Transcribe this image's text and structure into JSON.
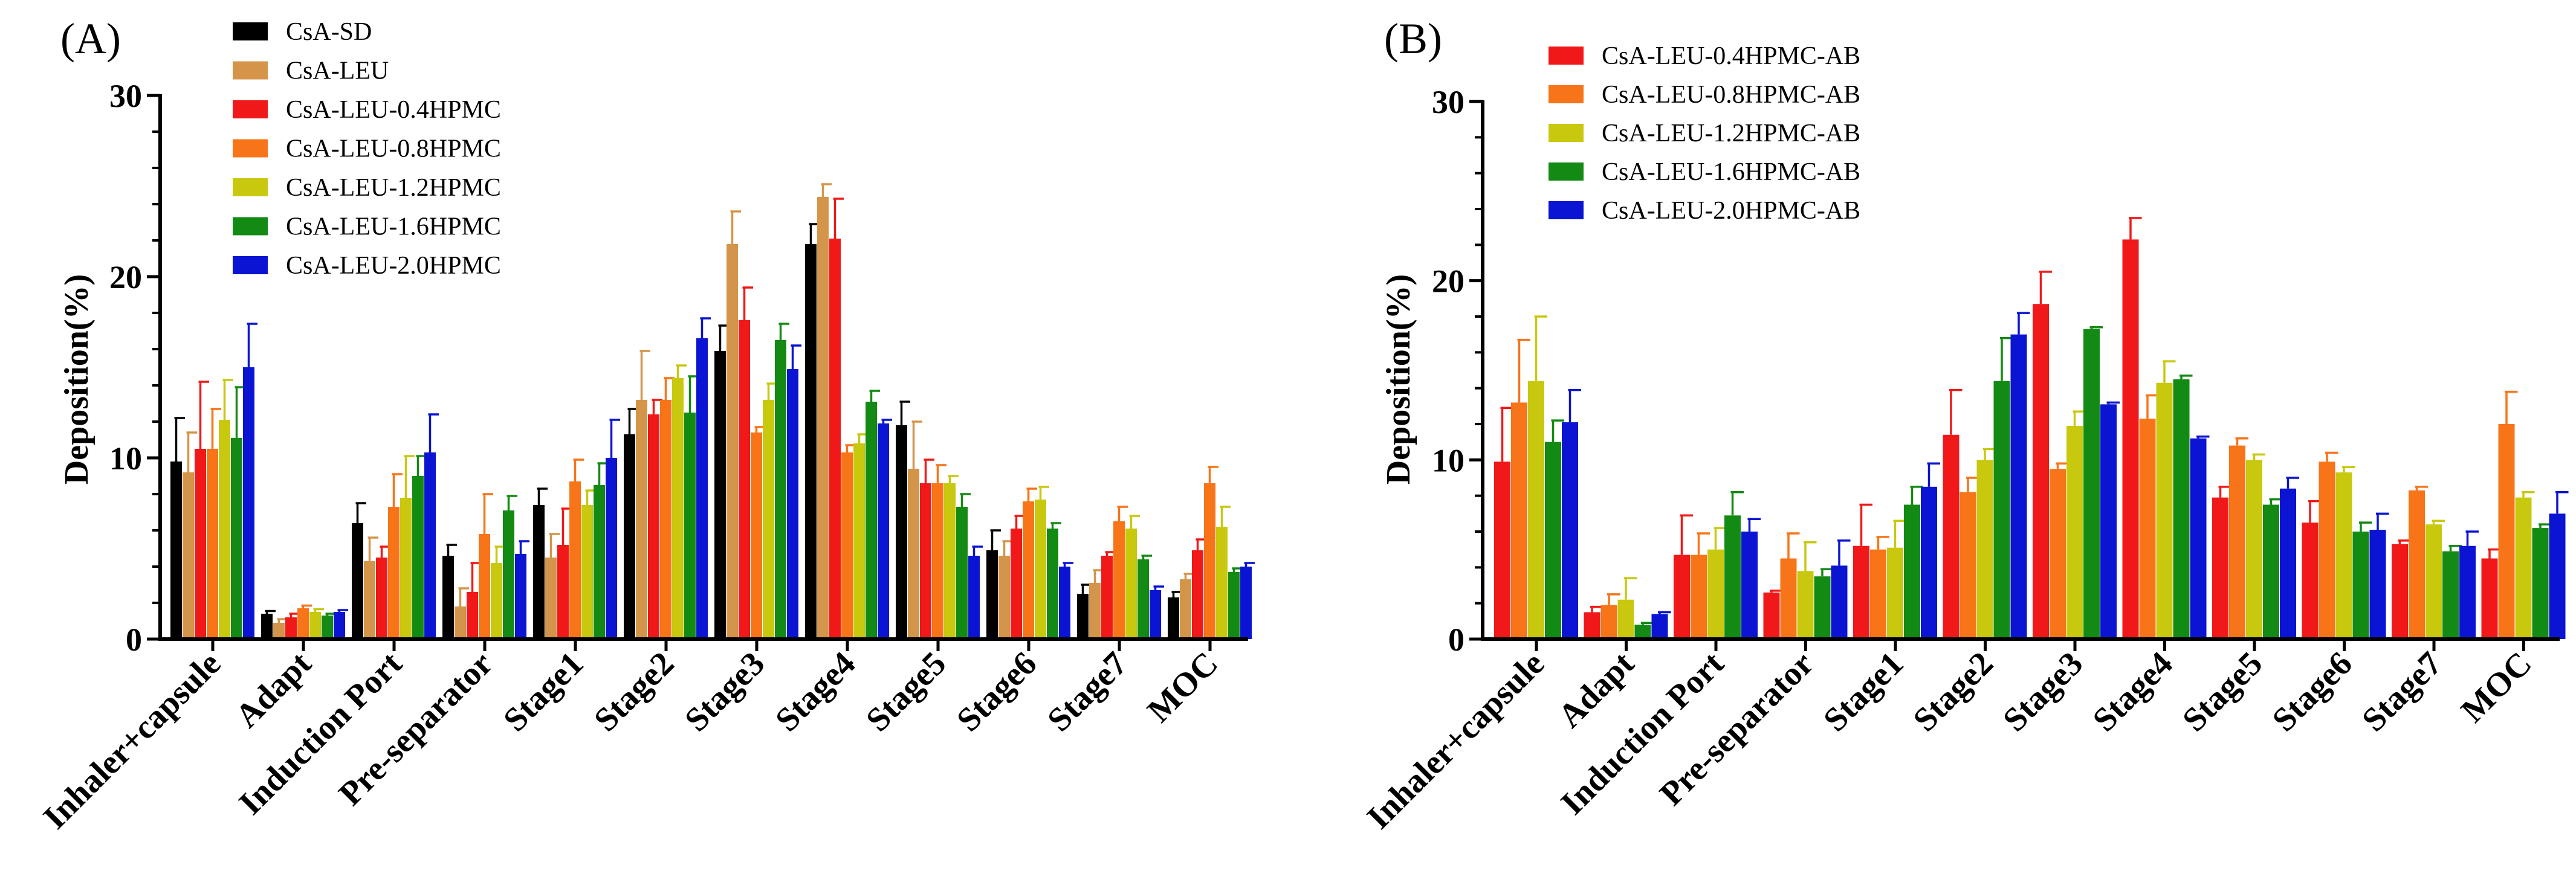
{
  "chart_data": [
    {
      "panel": "(A)",
      "type": "bar",
      "xlabel": "",
      "ylabel": "Deposition(%)",
      "ylim": [
        0,
        30
      ],
      "yticks": [
        0,
        10,
        20,
        30
      ],
      "grid": false,
      "legend_position": "top-left",
      "categories": [
        "Inhaler+capsule",
        "Adapt",
        "Induction Port",
        "Pre-separator",
        "Stage1",
        "Stage2",
        "Stage3",
        "Stage4",
        "Stage5",
        "Stage6",
        "Stage7",
        "MOC"
      ],
      "series": [
        {
          "name": "CsA-SD",
          "color": "#000000",
          "values": [
            9.8,
            1.4,
            6.4,
            4.6,
            7.4,
            11.3,
            15.9,
            21.8,
            11.8,
            4.9,
            2.5,
            2.3
          ],
          "errors": [
            2.4,
            0.15,
            1.1,
            0.6,
            0.9,
            1.4,
            1.4,
            1.1,
            1.3,
            1.1,
            0.5,
            0.3
          ]
        },
        {
          "name": "CsA-LEU",
          "color": "#D4954A",
          "values": [
            9.2,
            0.9,
            4.3,
            1.8,
            4.5,
            13.2,
            21.8,
            24.4,
            9.4,
            4.6,
            3.1,
            3.3
          ],
          "errors": [
            2.2,
            0.2,
            1.3,
            1.0,
            1.3,
            2.7,
            1.8,
            0.7,
            2.6,
            0.8,
            0.7,
            0.3
          ]
        },
        {
          "name": "CsA-LEU-0.4HPMC",
          "color": "#F01818",
          "values": [
            10.5,
            1.2,
            4.5,
            2.6,
            5.2,
            12.4,
            17.6,
            22.1,
            8.6,
            6.1,
            4.6,
            4.9
          ],
          "errors": [
            3.7,
            0.2,
            0.6,
            1.6,
            2.0,
            0.8,
            1.8,
            2.2,
            1.3,
            0.7,
            0.2,
            0.6
          ]
        },
        {
          "name": "CsA-LEU-0.8HPMC",
          "color": "#F77419",
          "values": [
            10.5,
            1.7,
            7.3,
            5.8,
            8.7,
            13.2,
            11.4,
            10.3,
            8.6,
            7.6,
            6.5,
            8.6
          ],
          "errors": [
            2.2,
            0.15,
            1.8,
            2.2,
            1.2,
            1.2,
            0.3,
            0.4,
            1.0,
            0.7,
            0.8,
            0.9
          ]
        },
        {
          "name": "CsA-LEU-1.2HPMC",
          "color": "#C8C80F",
          "values": [
            12.1,
            1.5,
            7.8,
            4.2,
            7.4,
            14.4,
            13.2,
            10.8,
            8.6,
            7.7,
            6.1,
            6.2
          ],
          "errors": [
            2.2,
            0.15,
            2.3,
            0.9,
            0.8,
            0.7,
            0.9,
            0.5,
            0.4,
            0.7,
            0.7,
            1.1
          ]
        },
        {
          "name": "CsA-LEU-1.6HPMC",
          "color": "#138A13",
          "values": [
            11.1,
            1.3,
            9.0,
            7.1,
            8.5,
            12.5,
            16.5,
            13.1,
            7.3,
            6.1,
            4.4,
            3.7
          ],
          "errors": [
            2.8,
            0.1,
            1.1,
            0.8,
            1.2,
            2.0,
            0.9,
            0.6,
            0.7,
            0.3,
            0.2,
            0.2
          ]
        },
        {
          "name": "CsA-LEU-2.0HPMC",
          "color": "#0A14D2",
          "values": [
            15.0,
            1.5,
            10.3,
            4.7,
            10.0,
            16.6,
            14.9,
            11.9,
            4.6,
            4.0,
            2.7,
            4.0
          ],
          "errors": [
            2.4,
            0.1,
            2.1,
            0.7,
            2.1,
            1.1,
            1.3,
            0.2,
            0.5,
            0.2,
            0.2,
            0.2
          ]
        }
      ]
    },
    {
      "panel": "(B)",
      "type": "bar",
      "xlabel": "",
      "ylabel": "Deposition(%)",
      "ylim": [
        0,
        30
      ],
      "yticks": [
        0,
        10,
        20,
        30
      ],
      "grid": false,
      "legend_position": "top-left",
      "categories": [
        "Inhaler+capsule",
        "Adapt",
        "Induction Port",
        "Pre-separator",
        "Stage1",
        "Stage2",
        "Stage3",
        "Stage4",
        "Stage5",
        "Stage6",
        "Stage7",
        "MOC"
      ],
      "series": [
        {
          "name": "CsA-LEU-0.4HPMC-AB",
          "color": "#F01818",
          "values": [
            9.9,
            1.5,
            4.7,
            2.6,
            5.2,
            11.4,
            18.7,
            22.3,
            7.9,
            6.5,
            5.3,
            4.5
          ],
          "errors": [
            3.0,
            0.3,
            2.2,
            0.1,
            2.3,
            2.5,
            1.8,
            1.2,
            0.6,
            1.2,
            0.2,
            0.5
          ]
        },
        {
          "name": "CsA-LEU-0.8HPMC-AB",
          "color": "#F77419",
          "values": [
            13.2,
            1.9,
            4.7,
            4.5,
            5.0,
            8.2,
            9.5,
            12.3,
            10.8,
            9.9,
            8.3,
            12.0
          ],
          "errors": [
            3.5,
            0.6,
            1.2,
            1.4,
            0.7,
            0.8,
            0.3,
            1.3,
            0.4,
            0.5,
            0.2,
            1.8
          ]
        },
        {
          "name": "CsA-LEU-1.2HPMC-AB",
          "color": "#C8C80F",
          "values": [
            14.4,
            2.2,
            5.0,
            3.8,
            5.1,
            10.0,
            11.9,
            14.3,
            10.0,
            9.3,
            6.4,
            7.9
          ],
          "errors": [
            3.6,
            1.2,
            1.2,
            1.6,
            1.5,
            0.6,
            0.8,
            1.2,
            0.3,
            0.3,
            0.2,
            0.3
          ]
        },
        {
          "name": "CsA-LEU-1.6HPMC-AB",
          "color": "#138A13",
          "values": [
            11.0,
            0.8,
            6.9,
            3.5,
            7.5,
            14.4,
            17.3,
            14.5,
            7.5,
            6.0,
            4.9,
            6.2
          ],
          "errors": [
            1.2,
            0.1,
            1.3,
            0.4,
            1.0,
            2.4,
            0.1,
            0.2,
            0.3,
            0.5,
            0.3,
            0.2
          ]
        },
        {
          "name": "CsA-LEU-2.0HPMC-AB",
          "color": "#0A14D2",
          "values": [
            12.1,
            1.4,
            6.0,
            4.1,
            8.5,
            17.0,
            13.1,
            11.2,
            8.4,
            6.1,
            5.2,
            7.0
          ],
          "errors": [
            1.8,
            0.1,
            0.7,
            1.4,
            1.3,
            1.2,
            0.1,
            0.1,
            0.6,
            0.9,
            0.8,
            1.2
          ]
        }
      ]
    }
  ]
}
